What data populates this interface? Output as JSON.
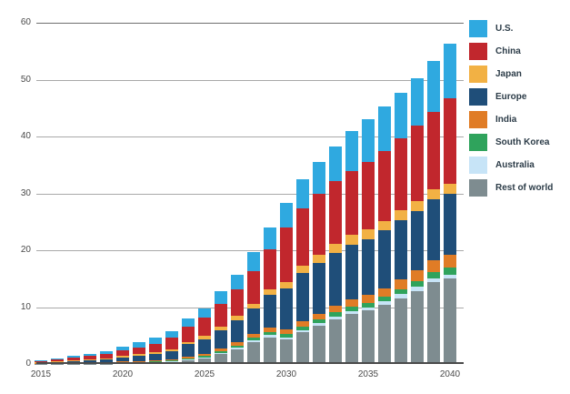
{
  "chart_data": {
    "type": "bar",
    "stacked": true,
    "title": "",
    "xlabel": "",
    "ylabel": "",
    "ylim": [
      0,
      60
    ],
    "y_ticks": [
      0,
      10,
      20,
      30,
      40,
      50,
      60
    ],
    "x_tick_years": [
      2015,
      2020,
      2025,
      2030,
      2035,
      2040
    ],
    "grid": true,
    "legend_position": "right",
    "years": [
      2015,
      2016,
      2017,
      2018,
      2019,
      2020,
      2021,
      2022,
      2023,
      2024,
      2025,
      2026,
      2027,
      2028,
      2029,
      2030,
      2031,
      2032,
      2033,
      2034,
      2035,
      2036,
      2037,
      2038,
      2039,
      2040
    ],
    "series": [
      {
        "name": "U.S.",
        "color": "#2FA9E0",
        "values": [
          0.15,
          0.25,
          0.3,
          0.4,
          0.5,
          0.7,
          0.85,
          1.0,
          1.2,
          1.4,
          1.6,
          2.2,
          2.5,
          3.4,
          3.8,
          4.3,
          5.1,
          5.6,
          6.1,
          6.9,
          7.4,
          7.8,
          8.0,
          8.3,
          9.0,
          9.6
        ]
      },
      {
        "name": "China",
        "color": "#C1272D",
        "values": [
          0.1,
          0.3,
          0.45,
          0.6,
          0.8,
          1.0,
          1.25,
          1.55,
          2.0,
          2.7,
          3.3,
          4.1,
          4.7,
          5.7,
          7.0,
          9.6,
          10.1,
          10.8,
          11.0,
          11.3,
          11.9,
          12.3,
          12.7,
          13.2,
          13.6,
          15.0
        ]
      },
      {
        "name": "Japan",
        "color": "#F2B144",
        "values": [
          0.05,
          0.07,
          0.1,
          0.12,
          0.15,
          0.2,
          0.25,
          0.3,
          0.35,
          0.4,
          0.5,
          0.6,
          0.8,
          0.9,
          1.0,
          1.1,
          1.3,
          1.4,
          1.5,
          1.7,
          1.7,
          1.7,
          1.75,
          1.75,
          1.8,
          1.8
        ]
      },
      {
        "name": "Europe",
        "color": "#1F4E79",
        "values": [
          0.2,
          0.25,
          0.35,
          0.45,
          0.55,
          0.75,
          0.9,
          1.1,
          1.4,
          2.2,
          2.6,
          3.2,
          3.9,
          4.4,
          5.8,
          7.2,
          8.4,
          9.0,
          9.3,
          9.6,
          9.9,
          10.2,
          10.4,
          10.5,
          10.6,
          10.7
        ]
      },
      {
        "name": "India",
        "color": "#E07C26",
        "values": [
          0.02,
          0.03,
          0.05,
          0.06,
          0.08,
          0.1,
          0.12,
          0.15,
          0.2,
          0.3,
          0.35,
          0.45,
          0.55,
          0.65,
          0.8,
          0.85,
          1.0,
          1.0,
          1.2,
          1.3,
          1.3,
          1.4,
          1.7,
          1.9,
          2.1,
          2.3
        ]
      },
      {
        "name": "South Korea",
        "color": "#2FA35C",
        "values": [
          0.03,
          0.04,
          0.05,
          0.06,
          0.08,
          0.1,
          0.12,
          0.14,
          0.17,
          0.2,
          0.25,
          0.3,
          0.4,
          0.45,
          0.5,
          0.55,
          0.6,
          0.65,
          0.7,
          0.75,
          0.8,
          0.85,
          0.9,
          1.0,
          1.1,
          1.2
        ]
      },
      {
        "name": "Australia",
        "color": "#C7E4F7",
        "values": [
          0.02,
          0.03,
          0.04,
          0.05,
          0.06,
          0.08,
          0.09,
          0.1,
          0.12,
          0.15,
          0.2,
          0.25,
          0.3,
          0.35,
          0.4,
          0.4,
          0.45,
          0.45,
          0.5,
          0.55,
          0.55,
          0.6,
          0.65,
          0.7,
          0.65,
          0.6
        ]
      },
      {
        "name": "Rest of world",
        "color": "#7E8C90",
        "values": [
          0.03,
          0.03,
          0.06,
          0.06,
          0.08,
          0.17,
          0.22,
          0.26,
          0.36,
          0.65,
          1.0,
          1.7,
          2.55,
          3.85,
          4.7,
          4.3,
          5.55,
          6.7,
          7.9,
          8.8,
          9.45,
          10.45,
          11.6,
          12.85,
          14.45,
          15.1
        ]
      }
    ],
    "totals": [
      0.6,
      1.0,
      1.4,
      1.8,
      2.3,
      3.1,
      3.8,
      4.6,
      5.8,
      8.0,
      9.8,
      12.8,
      15.7,
      19.7,
      24.0,
      28.3,
      32.5,
      35.6,
      38.2,
      40.9,
      43.0,
      45.3,
      47.7,
      50.2,
      53.3,
      56.3
    ]
  },
  "legend": {
    "items": [
      "U.S.",
      "China",
      "Japan",
      "Europe",
      "India",
      "South Korea",
      "Australia",
      "Rest of world"
    ]
  }
}
